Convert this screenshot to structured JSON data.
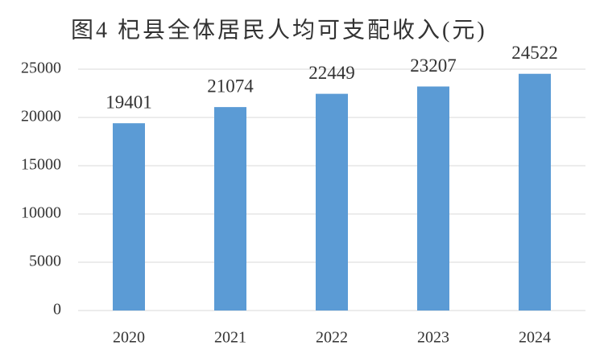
{
  "chart_data": {
    "type": "bar",
    "title": "图4 杞县全体居民人均可支配收入(元)",
    "categories": [
      "2020",
      "2021",
      "2022",
      "2023",
      "2024"
    ],
    "values": [
      19401,
      21074,
      22449,
      23207,
      24522
    ],
    "color": "#5b9bd5",
    "ylim": [
      0,
      25000
    ],
    "yticks": [
      0,
      5000,
      10000,
      15000,
      20000,
      25000
    ],
    "grid": true
  }
}
